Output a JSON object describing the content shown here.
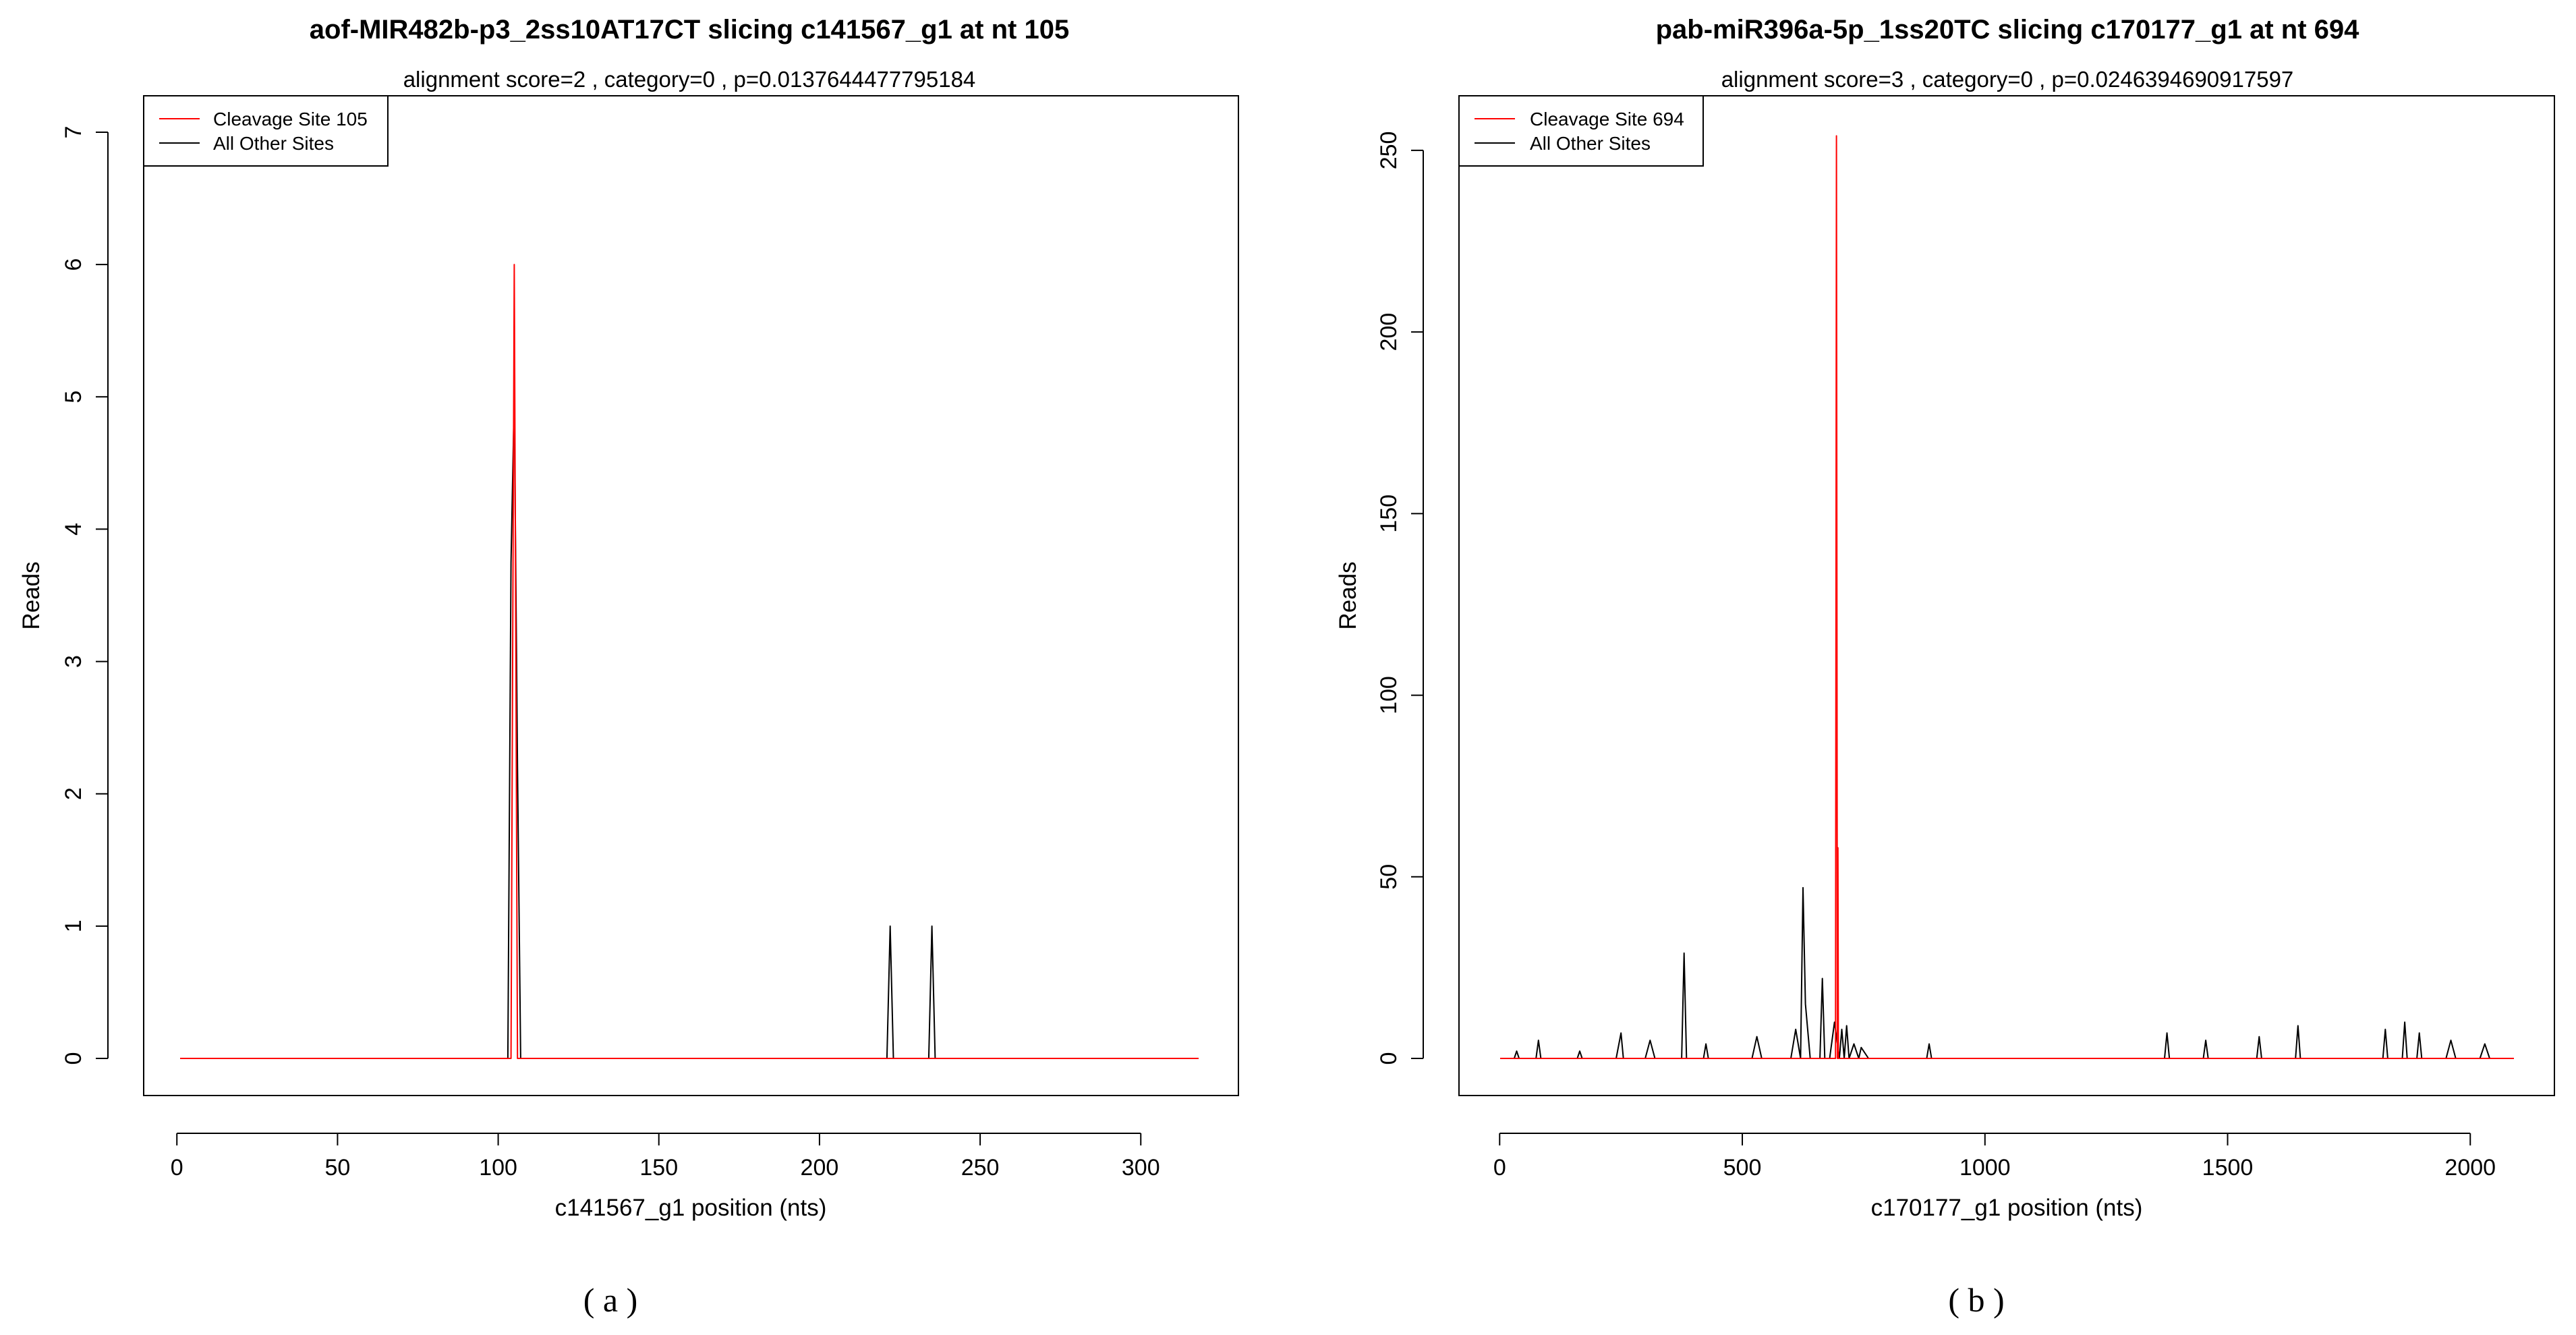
{
  "chart_data": [
    {
      "type": "line",
      "title": "aof-MIR482b-p3_2ss10AT17CT slicing c141567_g1 at nt 105",
      "subtitle": "alignment score=2 , category=0 , p=0.0137644477795184",
      "xlabel": "c141567_g1 position (nts)",
      "ylabel": "Reads",
      "caption": "( a )",
      "xlim": [
        1,
        318
      ],
      "ylim": [
        0,
        7
      ],
      "xticks": [
        0,
        50,
        100,
        150,
        200,
        250,
        300
      ],
      "yticks": [
        0,
        1,
        2,
        3,
        4,
        5,
        6,
        7
      ],
      "legend": {
        "position": "top-left",
        "entries": [
          "Cleavage Site 105",
          "All Other Sites"
        ]
      },
      "series": [
        {
          "name": "All Other Sites",
          "color": "#000000",
          "x": [
            1,
            103,
            104,
            105,
            106,
            107,
            221,
            222,
            223,
            234,
            235,
            236,
            318
          ],
          "y": [
            0,
            0,
            3.75,
            5,
            2.2,
            0,
            0,
            1,
            0,
            0,
            1,
            0,
            0
          ]
        },
        {
          "name": "Cleavage Site 105",
          "color": "#ff0000",
          "x": [
            1,
            103,
            104,
            105,
            106,
            107,
            318
          ],
          "y": [
            0,
            0,
            0,
            6,
            0,
            0,
            0
          ]
        }
      ]
    },
    {
      "type": "line",
      "title": "pab-miR396a-5p_1ss20TC slicing c170177_g1 at nt 694",
      "subtitle": "alignment score=3 , category=0 , p=0.0246394690917597",
      "xlabel": "c170177_g1 position (nts)",
      "ylabel": "Reads",
      "caption": "( b )",
      "xlim": [
        1,
        2090
      ],
      "ylim": [
        0,
        255
      ],
      "xticks": [
        0,
        500,
        1000,
        1500,
        2000
      ],
      "yticks": [
        0,
        50,
        100,
        150,
        200,
        250
      ],
      "legend": {
        "position": "top-left",
        "entries": [
          "Cleavage Site 694",
          "All Other Sites"
        ]
      },
      "series": [
        {
          "name": "All Other Sites",
          "color": "#000000",
          "x": [
            1,
            30,
            35,
            40,
            75,
            80,
            85,
            160,
            165,
            170,
            240,
            250,
            255,
            300,
            310,
            320,
            375,
            380,
            385,
            420,
            425,
            430,
            520,
            530,
            540,
            600,
            610,
            620,
            625,
            630,
            640,
            660,
            665,
            670,
            680,
            690,
            700,
            705,
            710,
            715,
            720,
            730,
            740,
            745,
            760,
            880,
            885,
            890,
            1370,
            1375,
            1380,
            1450,
            1455,
            1460,
            1560,
            1565,
            1570,
            1640,
            1645,
            1650,
            1800,
            1820,
            1825,
            1830,
            1860,
            1865,
            1870,
            1890,
            1895,
            1900,
            1950,
            1960,
            1970,
            2020,
            2030,
            2040,
            2090
          ],
          "y": [
            0,
            0,
            2,
            0,
            0,
            5,
            0,
            0,
            2,
            0,
            0,
            7,
            0,
            0,
            5,
            0,
            0,
            29,
            0,
            0,
            4,
            0,
            0,
            6,
            0,
            0,
            8,
            0,
            47,
            15,
            0,
            0,
            22,
            0,
            0,
            10,
            0,
            8,
            0,
            9,
            0,
            4,
            0,
            3,
            0,
            0,
            4,
            0,
            0,
            7,
            0,
            0,
            5,
            0,
            0,
            6,
            0,
            0,
            9,
            0,
            0,
            0,
            8,
            0,
            0,
            10,
            0,
            0,
            7,
            0,
            0,
            5,
            0,
            0,
            4,
            0,
            0
          ]
        },
        {
          "name": "Cleavage Site 694",
          "color": "#ff0000",
          "x": [
            1,
            690,
            692,
            694,
            696,
            697,
            698,
            699,
            2090
          ],
          "y": [
            0,
            0,
            0,
            254,
            0,
            58,
            0,
            0,
            0
          ]
        }
      ]
    }
  ]
}
